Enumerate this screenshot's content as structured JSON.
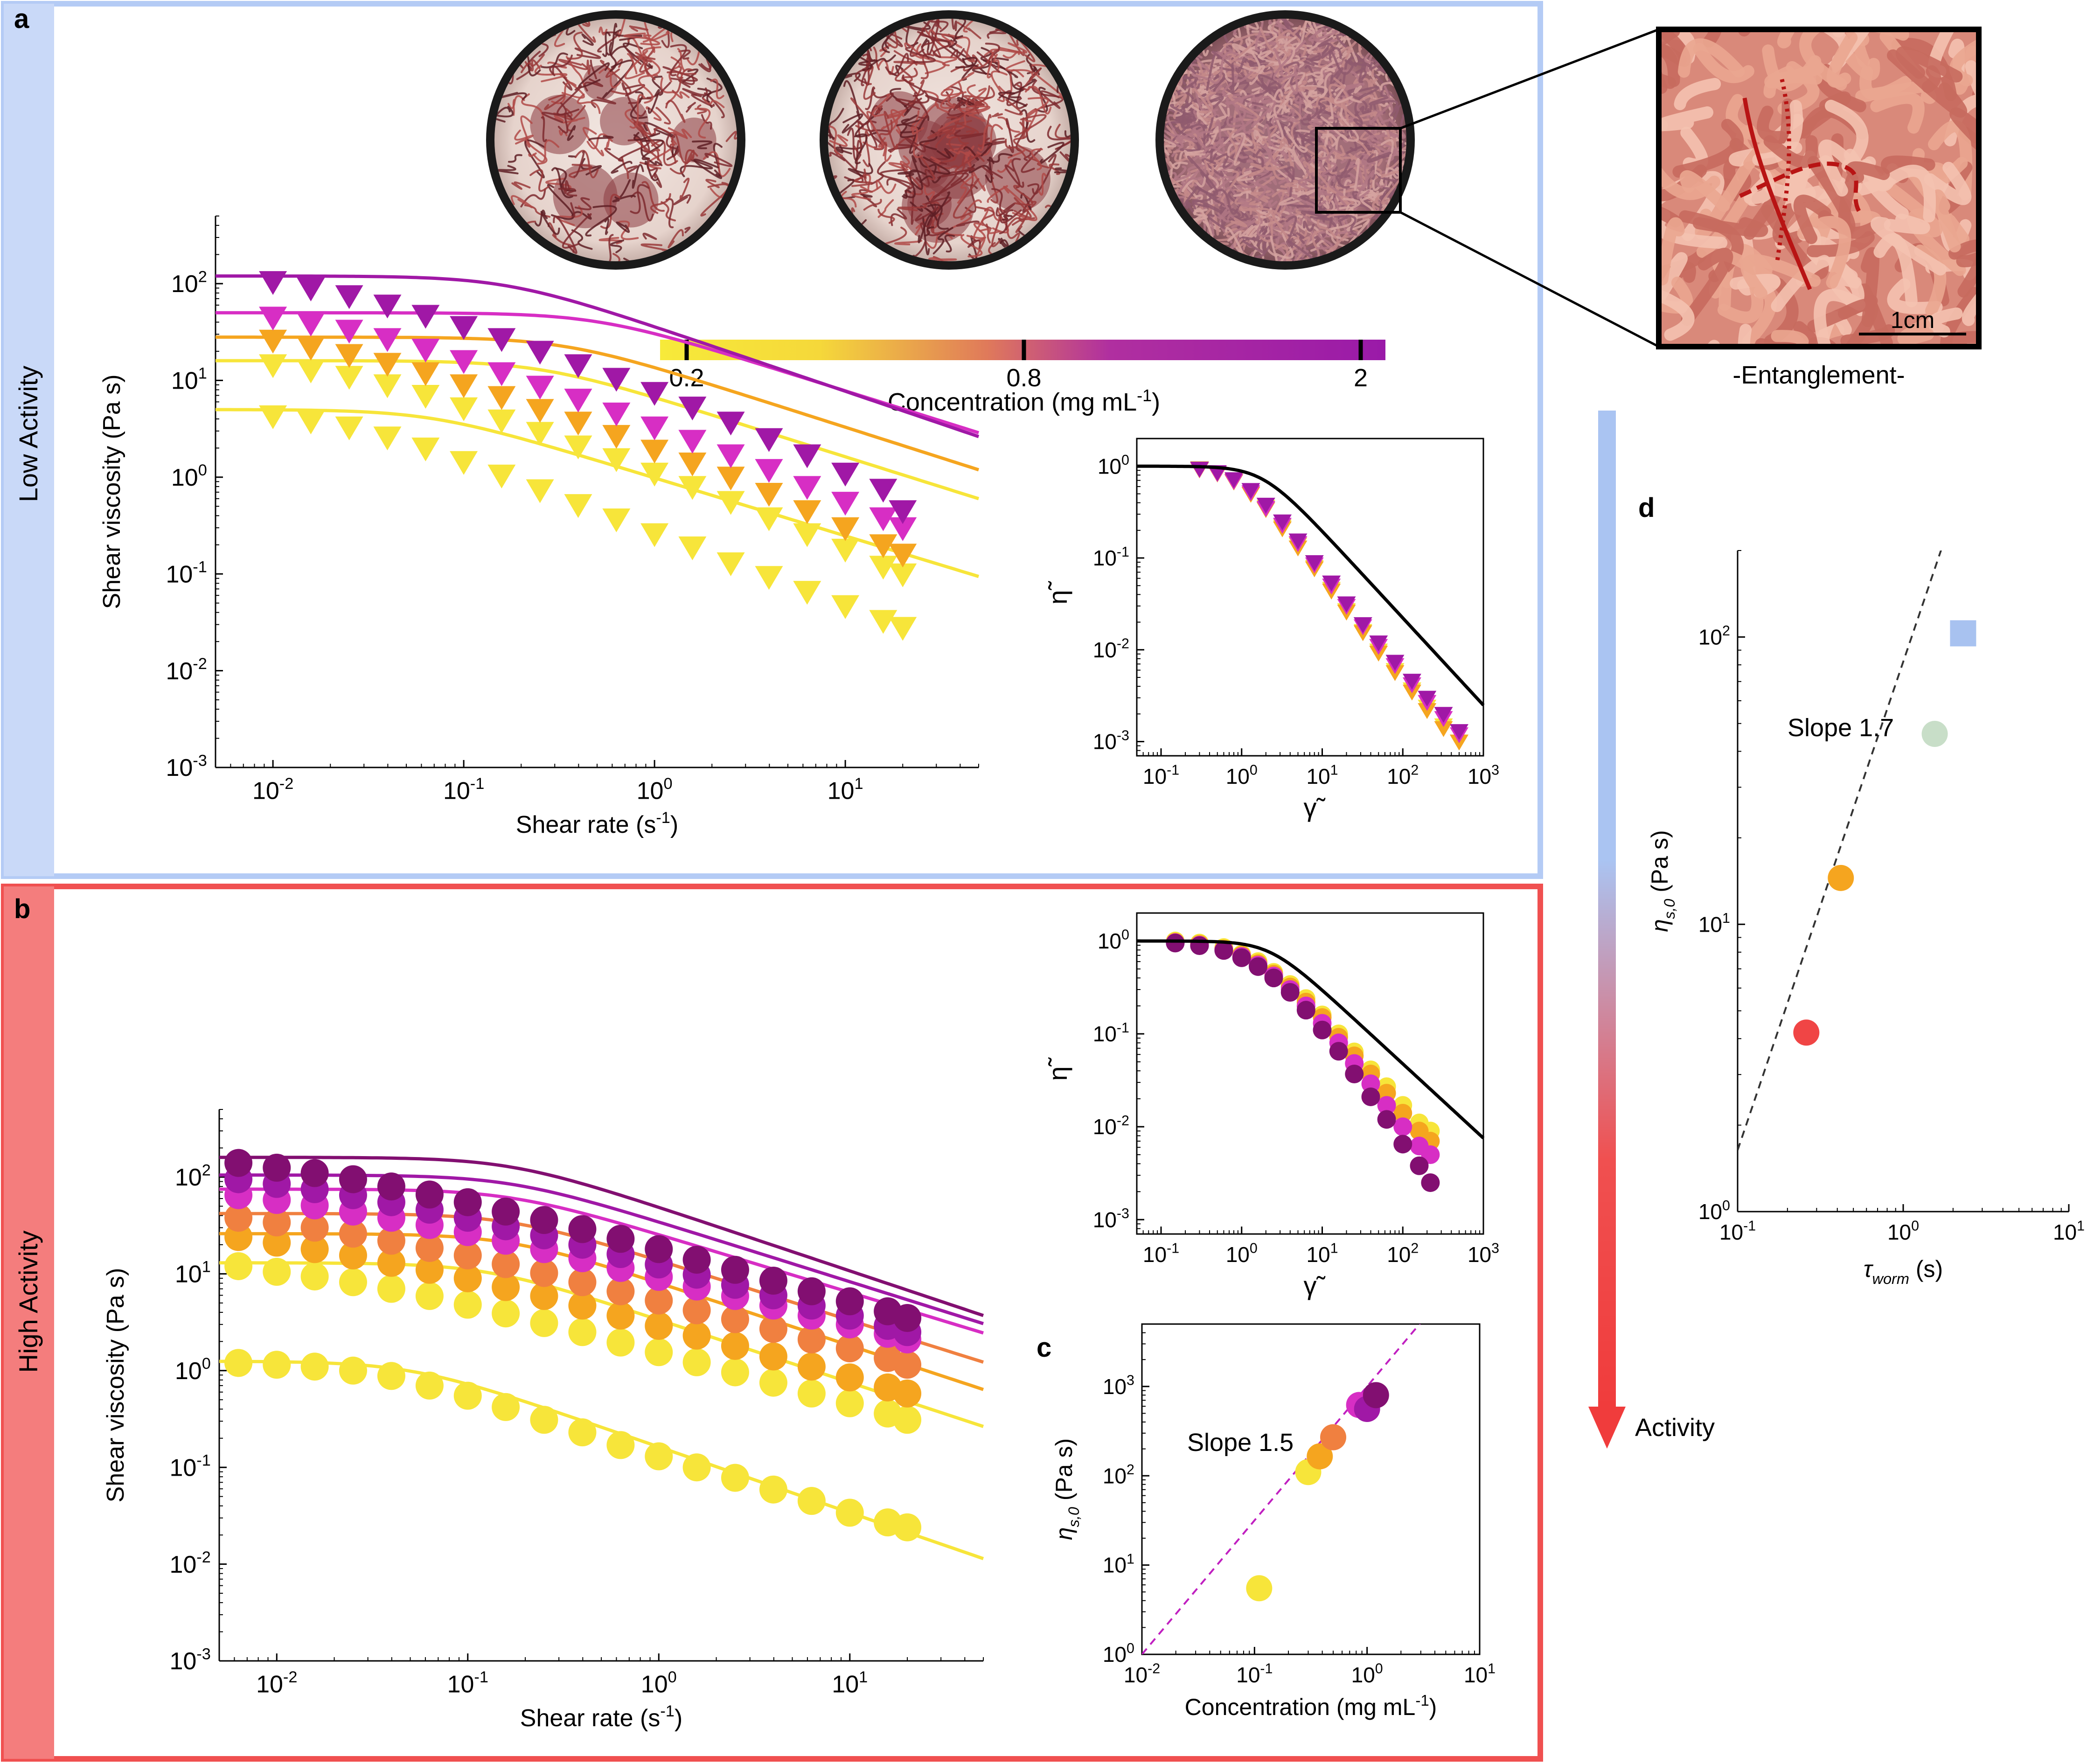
{
  "panels": {
    "a": {
      "letter": "a",
      "side_label": "Low Activity"
    },
    "b": {
      "letter": "b",
      "side_label": "High  Activity"
    },
    "c": {
      "letter": "c"
    },
    "d": {
      "letter": "d"
    }
  },
  "colors": {
    "low_frame": "#b4cbf5",
    "low_side": "#c9d9f8",
    "high_frame": "#f05050",
    "high_side": "#f47d7d",
    "conc": [
      "#f7e53a",
      "#f5a51f",
      "#d72ec4",
      "#a018a6",
      "#820f71"
    ]
  },
  "photos": {
    "scale_bar": "1cm",
    "caption": "-Entanglement-",
    "icons": [
      "worm-dish-photo",
      "worm-dish-photo",
      "worm-dish-photo",
      "entanglement-zoom-photo"
    ]
  },
  "colorbar": {
    "ticks": [
      "0.2",
      "0.8",
      "2"
    ],
    "label_prefix": "Concentration (mg mL",
    "label_sup": "-1",
    "label_suffix": ")"
  },
  "activity_arrow": {
    "label": "Activity"
  },
  "chart_data": [
    {
      "id": "a-main",
      "type": "line",
      "title": "",
      "xlabel_prefix": "Shear rate (s",
      "xlabel_sup": "-1",
      "xlabel_suffix": ")",
      "ylabel": "Shear viscosity (Pa s)",
      "xscale": "log",
      "yscale": "log",
      "xlim": [
        0.005,
        50
      ],
      "ylim": [
        0.001,
        500
      ],
      "x_ticks": [
        {
          "b": "10",
          "e": "-2"
        },
        {
          "b": "10",
          "e": "-1"
        },
        {
          "b": "10",
          "e": "0"
        },
        {
          "b": "10",
          "e": "1"
        }
      ],
      "y_ticks": [
        {
          "b": "10",
          "e": "-3"
        },
        {
          "b": "10",
          "e": "-2"
        },
        {
          "b": "10",
          "e": "-1"
        },
        {
          "b": "10",
          "e": "0"
        },
        {
          "b": "10",
          "e": "1"
        },
        {
          "b": "10",
          "e": "2"
        }
      ],
      "marker": "triangle-down",
      "x": [
        0.01,
        0.0158,
        0.0251,
        0.0398,
        0.0631,
        0.1,
        0.158,
        0.251,
        0.398,
        0.631,
        1.0,
        1.58,
        2.51,
        3.98,
        6.31,
        10,
        15.8,
        20
      ],
      "series": [
        {
          "color": "#f7e53a",
          "eta0": 5,
          "tau": 15,
          "n": 0.6,
          "values": [
            4.3,
            3.8,
            3.3,
            2.6,
            2.0,
            1.45,
            1.05,
            0.74,
            0.52,
            0.37,
            0.26,
            0.19,
            0.13,
            0.094,
            0.066,
            0.047,
            0.033,
            0.028
          ]
        },
        {
          "color": "#f7e53a",
          "eta0": 16,
          "tau": 4,
          "n": 0.62,
          "values": [
            14.5,
            12.8,
            11.0,
            9.0,
            7.0,
            5.2,
            3.9,
            2.9,
            2.1,
            1.55,
            1.1,
            0.8,
            0.56,
            0.38,
            0.26,
            0.18,
            0.12,
            0.1
          ]
        },
        {
          "color": "#f5a51f",
          "eta0": 28,
          "tau": 3,
          "n": 0.63,
          "values": [
            26,
            22,
            18.5,
            15,
            12,
            9,
            6.8,
            5.0,
            3.7,
            2.7,
            1.9,
            1.4,
            1.0,
            0.68,
            0.45,
            0.3,
            0.2,
            0.16
          ]
        },
        {
          "color": "#d72ec4",
          "eta0": 50,
          "tau": 2,
          "n": 0.62,
          "values": [
            45,
            39,
            33,
            27,
            21,
            16,
            12,
            8.7,
            6.4,
            4.6,
            3.3,
            2.4,
            1.7,
            1.2,
            0.8,
            0.55,
            0.38,
            0.3
          ]
        },
        {
          "color": "#a018a6",
          "eta0": 120,
          "tau": 6,
          "n": 0.67,
          "values": [
            105,
            90,
            75,
            60,
            47,
            36,
            27,
            20,
            14.5,
            10.5,
            7.5,
            5.3,
            3.7,
            2.5,
            1.7,
            1.1,
            0.75,
            0.45
          ]
        }
      ]
    },
    {
      "id": "a-master",
      "type": "scatter",
      "title": "",
      "xlabel": "γ̃",
      "ylabel": "η̃",
      "xscale": "log",
      "yscale": "log",
      "xlim": [
        0.05,
        1000
      ],
      "ylim": [
        0.0007,
        2
      ],
      "x_ticks": [
        {
          "b": "10",
          "e": "-1"
        },
        {
          "b": "10",
          "e": "0"
        },
        {
          "b": "10",
          "e": "1"
        },
        {
          "b": "10",
          "e": "2"
        },
        {
          "b": "10",
          "e": "3"
        }
      ],
      "y_ticks": [
        {
          "b": "10",
          "e": "-3"
        },
        {
          "b": "10",
          "e": "-2"
        },
        {
          "b": "10",
          "e": "-1"
        },
        {
          "b": "10",
          "e": "0"
        }
      ],
      "marker": "triangle-down",
      "master_curve": {
        "tau": 0.55,
        "n": 0.95,
        "color": "#000000"
      },
      "x": [
        0.3,
        0.5,
        0.8,
        1.3,
        2,
        3.2,
        5,
        8,
        13,
        20,
        32,
        50,
        80,
        130,
        200,
        320,
        500
      ],
      "series": [
        {
          "color": "#f7e53a",
          "values": [
            0.95,
            0.85,
            0.7,
            0.5,
            0.36,
            0.22,
            0.14,
            0.08,
            0.046,
            0.027,
            0.016,
            0.0098,
            0.006,
            0.0037,
            0.0024,
            0.0015,
            0.001
          ]
        },
        {
          "color": "#f5a51f",
          "values": [
            0.92,
            0.83,
            0.68,
            0.5,
            0.34,
            0.21,
            0.13,
            0.077,
            0.044,
            0.026,
            0.0155,
            0.0093,
            0.0057,
            0.0035,
            0.0022,
            0.0014,
            0.001
          ]
        },
        {
          "color": "#d72ec4",
          "values": [
            0.93,
            0.84,
            0.69,
            0.52,
            0.35,
            0.23,
            0.145,
            0.085,
            0.05,
            0.03,
            0.018,
            0.011,
            0.0068,
            0.0042,
            0.0027,
            0.0018,
            0.0012
          ]
        },
        {
          "color": "#a018a6",
          "values": [
            0.94,
            0.86,
            0.72,
            0.55,
            0.38,
            0.25,
            0.155,
            0.09,
            0.054,
            0.032,
            0.019,
            0.012,
            0.0074,
            0.0046,
            0.003,
            0.002,
            0.0013
          ]
        }
      ]
    },
    {
      "id": "b-main",
      "type": "line",
      "title": "",
      "xlabel_prefix": "Shear rate (s",
      "xlabel_sup": "-1",
      "xlabel_suffix": ")",
      "ylabel": "Shear viscosity (Pa s)",
      "xscale": "log",
      "yscale": "log",
      "xlim": [
        0.005,
        50
      ],
      "ylim": [
        0.001,
        500
      ],
      "x_ticks": [
        {
          "b": "10",
          "e": "-2"
        },
        {
          "b": "10",
          "e": "-1"
        },
        {
          "b": "10",
          "e": "0"
        },
        {
          "b": "10",
          "e": "1"
        }
      ],
      "y_ticks": [
        {
          "b": "10",
          "e": "-3"
        },
        {
          "b": "10",
          "e": "-2"
        },
        {
          "b": "10",
          "e": "-1"
        },
        {
          "b": "10",
          "e": "0"
        },
        {
          "b": "10",
          "e": "1"
        },
        {
          "b": "10",
          "e": "2"
        }
      ],
      "marker": "circle",
      "x": [
        0.0063,
        0.01,
        0.0158,
        0.0251,
        0.0398,
        0.0631,
        0.1,
        0.158,
        0.251,
        0.398,
        0.631,
        1.0,
        1.58,
        2.51,
        3.98,
        6.31,
        10,
        15.8,
        20
      ],
      "series": [
        {
          "color": "#f7e53a",
          "eta0": 1.25,
          "tau": 20,
          "n": 0.68,
          "values": [
            1.2,
            1.15,
            1.1,
            1.0,
            0.88,
            0.7,
            0.55,
            0.42,
            0.31,
            0.23,
            0.17,
            0.13,
            0.1,
            0.078,
            0.059,
            0.045,
            0.034,
            0.027,
            0.024
          ]
        },
        {
          "color": "#f7e53a",
          "eta0": 13,
          "tau": 8,
          "n": 0.65,
          "values": [
            12,
            10.5,
            9.4,
            8.2,
            7.0,
            5.9,
            4.8,
            3.9,
            3.1,
            2.5,
            1.95,
            1.55,
            1.22,
            0.96,
            0.75,
            0.58,
            0.46,
            0.36,
            0.31
          ]
        },
        {
          "color": "#f5a51f",
          "eta0": 26,
          "tau": 6,
          "n": 0.65,
          "values": [
            24,
            21,
            18,
            15.5,
            13,
            11,
            9,
            7.3,
            5.9,
            4.7,
            3.7,
            2.9,
            2.3,
            1.8,
            1.4,
            1.1,
            0.85,
            0.67,
            0.58
          ]
        },
        {
          "color": "#f08040",
          "eta0": 42,
          "tau": 6,
          "n": 0.62,
          "values": [
            38,
            34,
            30,
            26,
            22,
            18.5,
            15.5,
            12.6,
            10.2,
            8.2,
            6.6,
            5.3,
            4.2,
            3.4,
            2.7,
            2.1,
            1.7,
            1.35,
            1.15
          ]
        },
        {
          "color": "#d72ec4",
          "eta0": 75,
          "tau": 6,
          "n": 0.6,
          "values": [
            65,
            58,
            51,
            44,
            38,
            32,
            27,
            22,
            18,
            14.5,
            11.5,
            9.3,
            7.4,
            5.9,
            4.7,
            3.7,
            3.0,
            2.4,
            2.1
          ]
        },
        {
          "color": "#a018a6",
          "eta0": 105,
          "tau": 6,
          "n": 0.62,
          "values": [
            95,
            85,
            75,
            65,
            55,
            46,
            38,
            31,
            25,
            20,
            16,
            12.5,
            9.8,
            7.7,
            6.0,
            4.7,
            3.7,
            2.9,
            2.5
          ]
        },
        {
          "color": "#820f71",
          "eta0": 160,
          "tau": 6,
          "n": 0.66,
          "values": [
            140,
            125,
            110,
            95,
            80,
            66,
            55,
            44,
            36,
            29,
            23,
            18,
            14,
            11,
            8.5,
            6.6,
            5.2,
            4.1,
            3.5
          ]
        }
      ]
    },
    {
      "id": "b-master",
      "type": "scatter",
      "title": "",
      "xlabel": "γ̃",
      "ylabel": "η̃",
      "xscale": "log",
      "yscale": "log",
      "xlim": [
        0.05,
        1000
      ],
      "ylim": [
        0.0007,
        2
      ],
      "x_ticks": [
        {
          "b": "10",
          "e": "-1"
        },
        {
          "b": "10",
          "e": "0"
        },
        {
          "b": "10",
          "e": "1"
        },
        {
          "b": "10",
          "e": "2"
        },
        {
          "b": "10",
          "e": "3"
        }
      ],
      "y_ticks": [
        {
          "b": "10",
          "e": "-3"
        },
        {
          "b": "10",
          "e": "-2"
        },
        {
          "b": "10",
          "e": "-1"
        },
        {
          "b": "10",
          "e": "0"
        }
      ],
      "marker": "circle",
      "master_curve": {
        "tau": 0.45,
        "n": 0.8,
        "color": "#000000"
      },
      "x": [
        0.15,
        0.3,
        0.6,
        1.0,
        1.6,
        2.5,
        4,
        6.3,
        10,
        16,
        25,
        40,
        63,
        100,
        160,
        220
      ],
      "series": [
        {
          "color": "#f7e53a",
          "values": [
            1.0,
            0.95,
            0.85,
            0.72,
            0.6,
            0.46,
            0.34,
            0.24,
            0.16,
            0.1,
            0.064,
            0.041,
            0.027,
            0.017,
            0.011,
            0.009
          ]
        },
        {
          "color": "#f5a51f",
          "values": [
            0.97,
            0.92,
            0.82,
            0.7,
            0.57,
            0.44,
            0.32,
            0.22,
            0.15,
            0.092,
            0.058,
            0.037,
            0.023,
            0.014,
            0.009,
            0.007
          ]
        },
        {
          "color": "#d72ec4",
          "values": [
            0.96,
            0.9,
            0.8,
            0.68,
            0.55,
            0.42,
            0.3,
            0.2,
            0.13,
            0.08,
            0.048,
            0.029,
            0.017,
            0.01,
            0.0062,
            0.005
          ]
        },
        {
          "color": "#820f71",
          "values": [
            0.95,
            0.89,
            0.79,
            0.66,
            0.53,
            0.4,
            0.28,
            0.18,
            0.11,
            0.065,
            0.037,
            0.021,
            0.012,
            0.0065,
            0.0038,
            0.0025
          ]
        }
      ]
    },
    {
      "id": "c",
      "type": "scatter",
      "title": "",
      "xlabel_prefix": "Concentration (mg mL",
      "xlabel_sup": "-1",
      "xlabel_suffix": ")",
      "ylabel_main": "η",
      "ylabel_sub": "s,0",
      "ylabel_tail": " (Pa s)",
      "xscale": "log",
      "yscale": "log",
      "xlim": [
        0.01,
        10
      ],
      "ylim": [
        1,
        5000
      ],
      "x_ticks": [
        {
          "b": "10",
          "e": "-2"
        },
        {
          "b": "10",
          "e": "-1"
        },
        {
          "b": "10",
          "e": "0"
        },
        {
          "b": "10",
          "e": "1"
        }
      ],
      "y_ticks": [
        {
          "b": "10",
          "e": "0"
        },
        {
          "b": "10",
          "e": "1"
        },
        {
          "b": "10",
          "e": "2"
        },
        {
          "b": "10",
          "e": "3"
        }
      ],
      "annotation": "Slope 1.5",
      "fit_line": {
        "slope": 1.5,
        "prefactor": 1000,
        "color": "#c01fc0",
        "style": "dashed"
      },
      "points": [
        {
          "x": 0.11,
          "y": 5.5,
          "color": "#f7e53a"
        },
        {
          "x": 0.3,
          "y": 110,
          "color": "#f7e53a"
        },
        {
          "x": 0.38,
          "y": 165,
          "color": "#f5a51f"
        },
        {
          "x": 0.5,
          "y": 270,
          "color": "#f08040"
        },
        {
          "x": 0.85,
          "y": 620,
          "color": "#d72ec4"
        },
        {
          "x": 1.0,
          "y": 560,
          "color": "#a018a6"
        },
        {
          "x": 1.2,
          "y": 800,
          "color": "#820f71"
        }
      ]
    },
    {
      "id": "d",
      "type": "scatter",
      "title": "",
      "xlabel_main": "τ",
      "xlabel_sub": "worm",
      "xlabel_tail": " (s)",
      "ylabel_main": "η",
      "ylabel_sub": "s,0",
      "ylabel_tail": " (Pa s)",
      "xscale": "log",
      "yscale": "log",
      "xlim": [
        0.1,
        10
      ],
      "ylim": [
        1,
        200
      ],
      "x_ticks": [
        {
          "b": "10",
          "e": "-1"
        },
        {
          "b": "10",
          "e": "0"
        },
        {
          "b": "10",
          "e": "1"
        }
      ],
      "y_ticks": [
        {
          "b": "10",
          "e": "0"
        },
        {
          "b": "10",
          "e": "1"
        },
        {
          "b": "10",
          "e": "2"
        }
      ],
      "annotation": "Slope 1.7",
      "fit_line": {
        "slope": 1.7,
        "prefactor": 82,
        "color": "#333333",
        "style": "dashed"
      },
      "points": [
        {
          "x": 0.26,
          "y": 4.2,
          "color": "#f04545",
          "marker": "circle"
        },
        {
          "x": 0.42,
          "y": 14.5,
          "color": "#f5a51f",
          "marker": "circle"
        },
        {
          "x": 1.55,
          "y": 46,
          "color": "#c8dec8",
          "marker": "circle"
        },
        {
          "x": 2.3,
          "y": 103,
          "color": "#a8c2f0",
          "marker": "square"
        }
      ]
    }
  ]
}
